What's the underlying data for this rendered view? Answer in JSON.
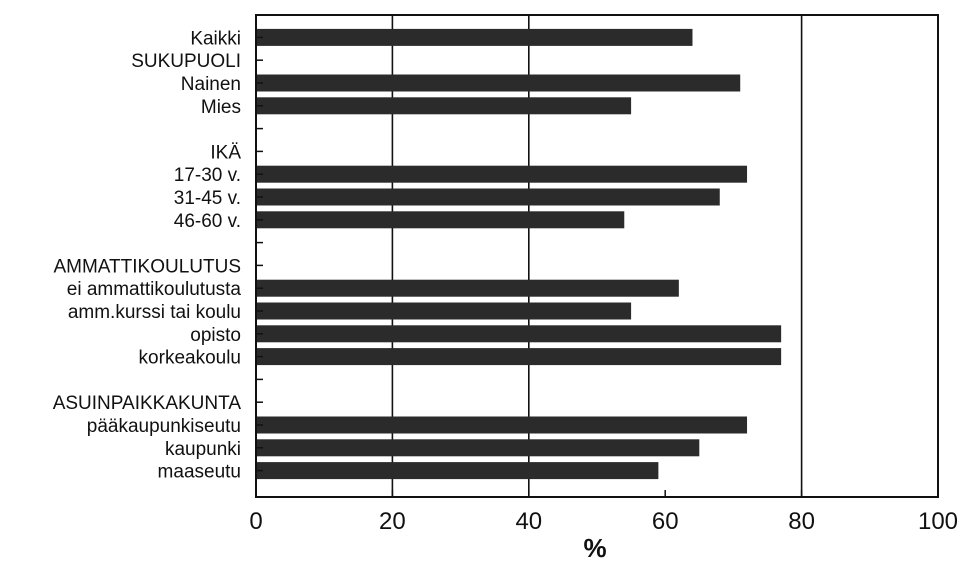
{
  "chart_data": {
    "type": "bar",
    "orientation": "horizontal",
    "rows": [
      {
        "label": "Kaikki",
        "value": 64
      },
      {
        "label": "SUKUPUOLI",
        "value": null,
        "group_header": true
      },
      {
        "label": "Nainen",
        "value": 71
      },
      {
        "label": "Mies",
        "value": 55
      },
      {
        "label": "",
        "value": null
      },
      {
        "label": "IKÄ",
        "value": null,
        "group_header": true
      },
      {
        "label": "17-30 v.",
        "value": 72
      },
      {
        "label": "31-45 v.",
        "value": 68
      },
      {
        "label": "46-60 v.",
        "value": 54
      },
      {
        "label": "",
        "value": null
      },
      {
        "label": "AMMATTIKOULUTUS",
        "value": null,
        "group_header": true
      },
      {
        "label": "ei ammattikoulutusta",
        "value": 62
      },
      {
        "label": "amm.kurssi tai koulu",
        "value": 55
      },
      {
        "label": "opisto",
        "value": 77
      },
      {
        "label": "korkeakoulu",
        "value": 77
      },
      {
        "label": "",
        "value": null
      },
      {
        "label": "ASUINPAIKKAKUNTA",
        "value": null,
        "group_header": true
      },
      {
        "label": "pääkaupunkiseutu",
        "value": 72
      },
      {
        "label": "kaupunki",
        "value": 65
      },
      {
        "label": "maaseutu",
        "value": 59
      }
    ],
    "xlabel": "%",
    "xlim": [
      0,
      100
    ],
    "xticks": [
      "0",
      "20",
      "40",
      "60",
      "80",
      "100"
    ],
    "gridlines_at": [
      20,
      40,
      80
    ],
    "bar_color": "#2b2b2b",
    "axis_color": "#111111"
  }
}
